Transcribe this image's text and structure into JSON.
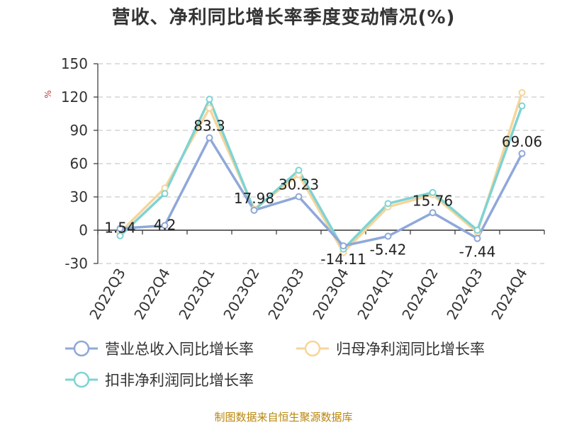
{
  "chart_data": {
    "type": "line",
    "title": "营收、净利同比增长率季度变动情况(%)",
    "ylabel": "%",
    "categories": [
      "2022Q3",
      "2022Q4",
      "2023Q1",
      "2023Q2",
      "2023Q3",
      "2023Q4",
      "2024Q1",
      "2024Q2",
      "2024Q3",
      "2024Q4"
    ],
    "ylim": [
      -30,
      150
    ],
    "yticks": [
      -30,
      0,
      30,
      60,
      90,
      120,
      150
    ],
    "grid": true,
    "legend_position": "bottom",
    "series": [
      {
        "name": "营业总收入同比增长率",
        "color": "#8fa8d8",
        "values": [
          1.54,
          4.2,
          83.3,
          17.98,
          30.23,
          -14.11,
          -5.42,
          15.76,
          -7.44,
          69.06
        ],
        "labels": [
          "1.54",
          "4.2",
          "83.3",
          "17.98",
          "30.23",
          "-14.11",
          "-5.42",
          "15.76",
          "-7.44",
          "69.06"
        ]
      },
      {
        "name": "归母净利润同比增长率",
        "color": "#f7d59a",
        "values": [
          -2,
          38,
          110,
          19,
          50,
          -20,
          21,
          32,
          -2,
          124
        ]
      },
      {
        "name": "扣非净利润同比增长率",
        "color": "#7fd3d3",
        "values": [
          -5,
          33,
          118,
          18,
          54,
          -17,
          24,
          34,
          0,
          112
        ]
      }
    ]
  },
  "footer": "制图数据来自恒生聚源数据库"
}
